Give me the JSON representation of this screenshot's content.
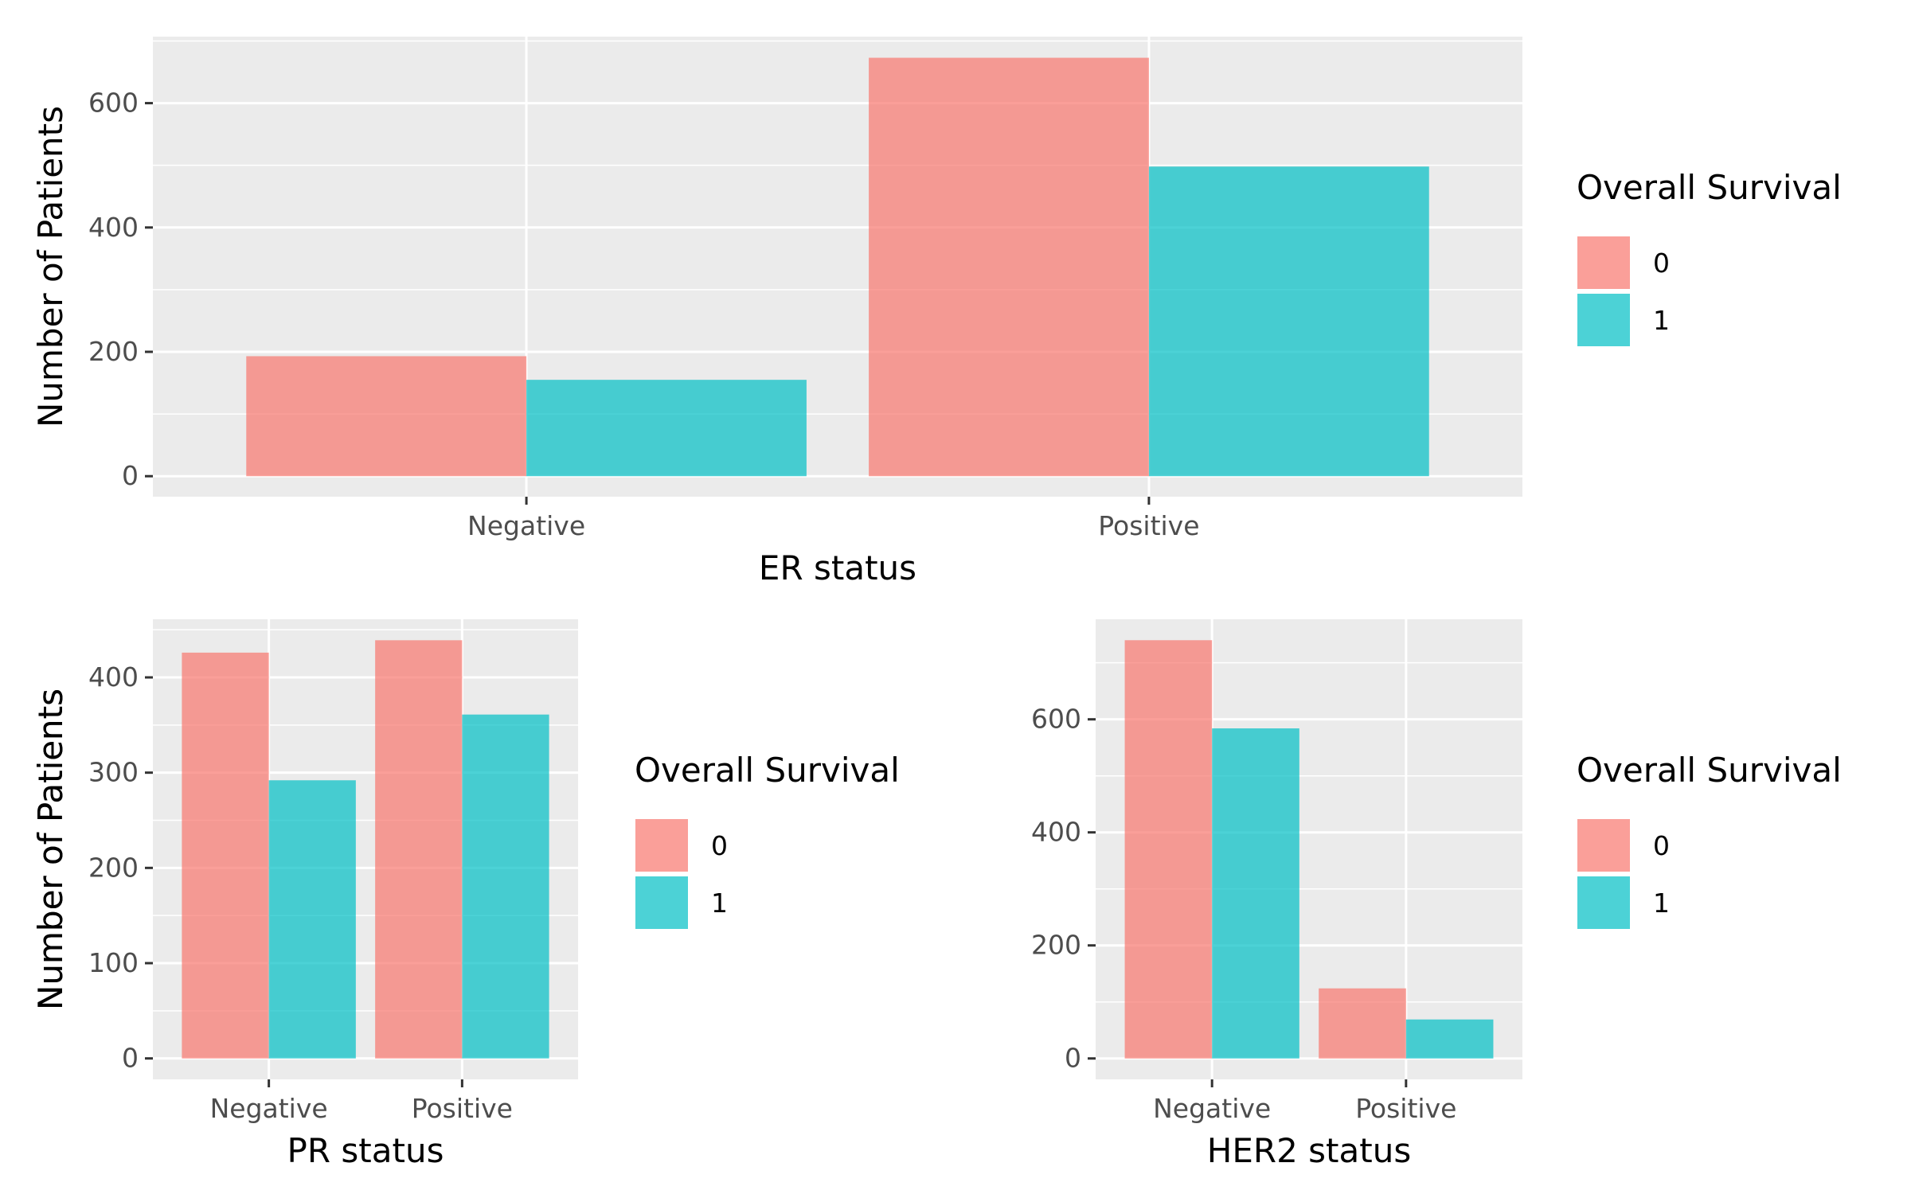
{
  "figure": {
    "background": "#ffffff",
    "panel_background": "#ebebeb",
    "grid_color": "#ffffff",
    "tick_color": "#333333"
  },
  "chart_data": [
    {
      "type": "bar",
      "categories": [
        "Negative",
        "Positive"
      ],
      "series": [
        {
          "name": "0",
          "values": [
            193,
            673
          ],
          "color": "#f8766d"
        },
        {
          "name": "1",
          "values": [
            155,
            498
          ],
          "color": "#00bfc4"
        }
      ],
      "xlabel": "ER status",
      "ylabel": "Number of Patients",
      "ylim": [
        -33,
        707
      ],
      "yticks": [
        0,
        200,
        400,
        600
      ],
      "legend_title": "Overall Survival",
      "legend_position": "right",
      "grid": true
    },
    {
      "type": "bar",
      "categories": [
        "Negative",
        "Positive"
      ],
      "series": [
        {
          "name": "0",
          "values": [
            426,
            439
          ],
          "color": "#f8766d"
        },
        {
          "name": "1",
          "values": [
            292,
            361
          ],
          "color": "#00bfc4"
        }
      ],
      "xlabel": "PR status",
      "ylabel": "Number of Patients",
      "ylim": [
        -22,
        461
      ],
      "yticks": [
        0,
        100,
        200,
        300,
        400
      ],
      "legend_title": "Overall Survival",
      "legend_position": "right",
      "grid": true
    },
    {
      "type": "bar",
      "categories": [
        "Negative",
        "Positive"
      ],
      "series": [
        {
          "name": "0",
          "values": [
            740,
            124
          ],
          "color": "#f8766d"
        },
        {
          "name": "1",
          "values": [
            584,
            69
          ],
          "color": "#00bfc4"
        }
      ],
      "xlabel": "HER2 status",
      "ylabel": "Number of Patients",
      "ylim": [
        -37,
        777
      ],
      "yticks": [
        0,
        200,
        400,
        600
      ],
      "legend_title": "Overall Survival",
      "legend_position": "right",
      "grid": true
    }
  ]
}
